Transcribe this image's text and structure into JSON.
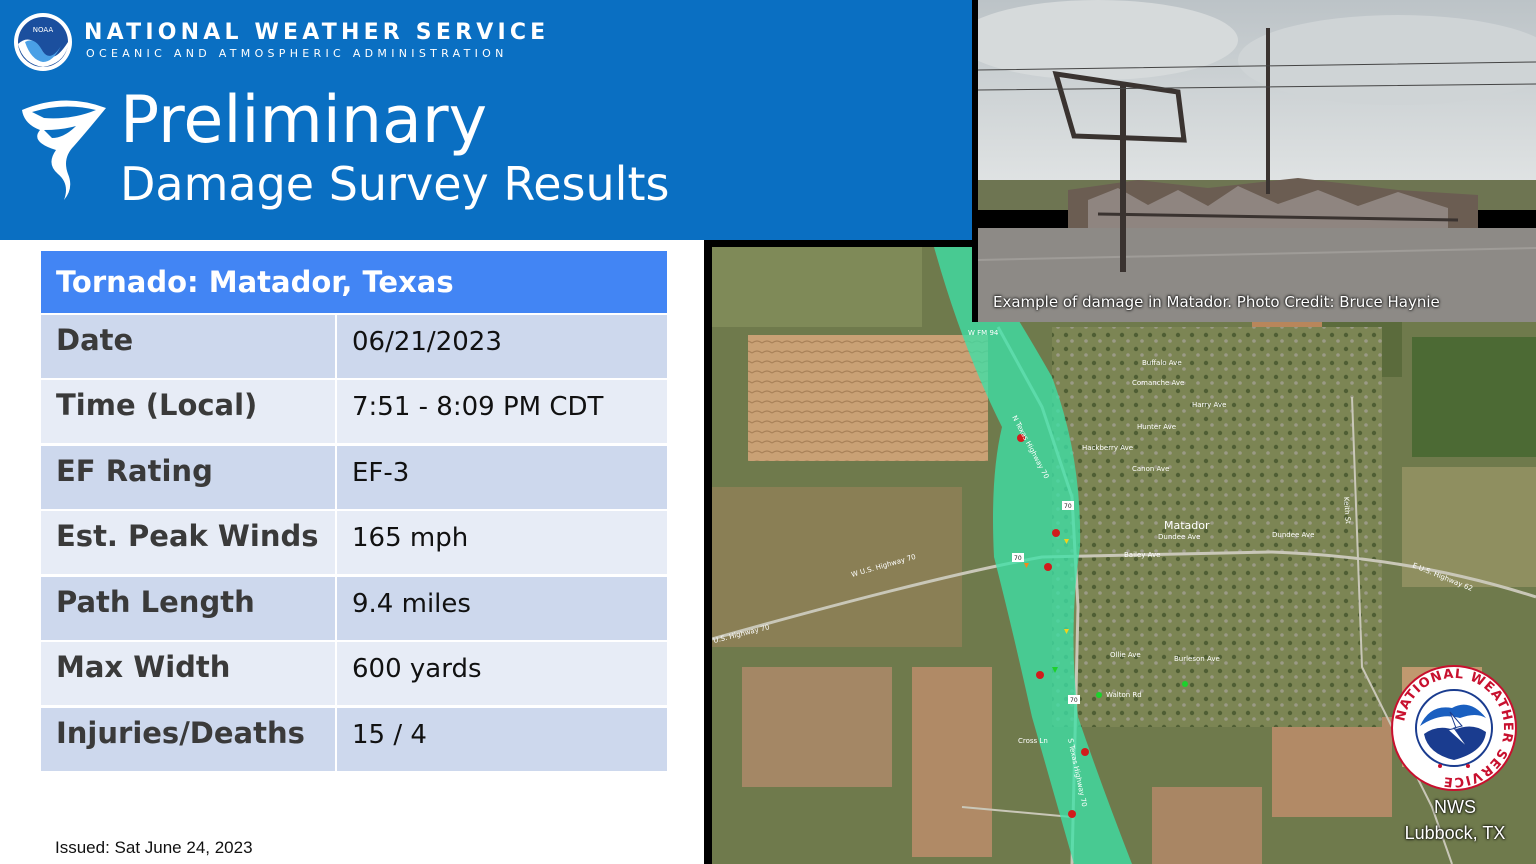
{
  "header": {
    "agency_name": "NATIONAL WEATHER SERVICE",
    "agency_subtitle": "OCEANIC AND ATMOSPHERIC ADMINISTRATION",
    "noaa_logo_text": "NOAA",
    "title_line1": "Preliminary",
    "title_line2": "Damage Survey Results",
    "background_color": "#0a6fc2"
  },
  "table": {
    "heading": "Tornado: Matador, Texas",
    "heading_color": "#4285f4",
    "rows": [
      {
        "label": "Date",
        "value": "06/21/2023"
      },
      {
        "label": "Time (Local)",
        "value": "7:51 - 8:09 PM CDT"
      },
      {
        "label": "EF Rating",
        "value": "EF-3"
      },
      {
        "label": "Est. Peak Winds",
        "value": "165 mph"
      },
      {
        "label": "Path Length",
        "value": "9.4 miles"
      },
      {
        "label": "Max Width",
        "value": "600 yards"
      },
      {
        "label": "Injuries/Deaths",
        "value": "15 / 4"
      }
    ]
  },
  "footer": {
    "issued": "Issued: Sat June 24, 2023"
  },
  "photo": {
    "caption": "Example of damage in Matador. Photo Credit: Bruce Haynie"
  },
  "map": {
    "town_label": "Matador",
    "path_color": "#3ee0a6",
    "streets": [
      "Buffalo Ave",
      "Comanche Ave",
      "Harry Ave",
      "Hunter Ave",
      "Hackberry Ave",
      "Canon Ave",
      "Dundee Ave",
      "Bailey Ave",
      "Dundee Ave",
      "Ollie Ave",
      "Burleson Ave",
      "Walton Rd",
      "Cross Ln",
      "W FM 94",
      "N Texas Highway 70",
      "W U.S. Highway 70",
      "U.S. Highway 70",
      "E U.S. Highway 62",
      "Keith St",
      "S Texas Highway 70"
    ],
    "route_shield": "70"
  },
  "nws_badge": {
    "ring_text": "NATIONAL WEATHER SERVICE",
    "office_line1": "NWS",
    "office_line2": "Lubbock, TX"
  }
}
